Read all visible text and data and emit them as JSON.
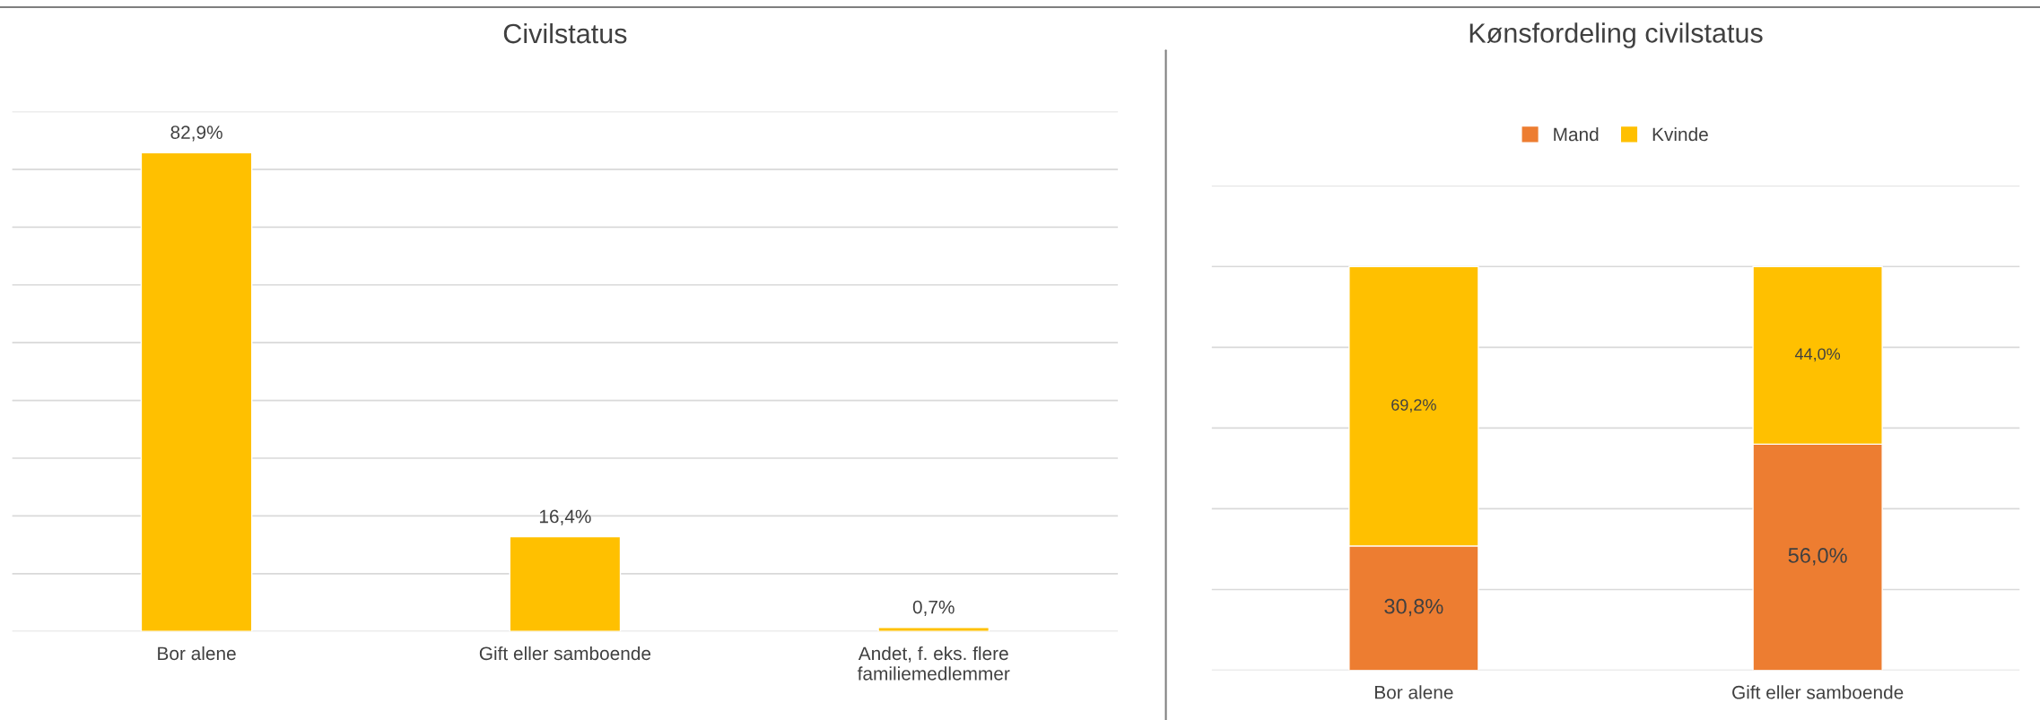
{
  "chart_data": [
    {
      "type": "bar",
      "title": "Civilstatus",
      "categories": [
        "Bor alene",
        "Gift eller samboende",
        "Andet, f. eks. flere\nfamiliemedlemmer"
      ],
      "series": [
        {
          "color": "#ffc000",
          "values": [
            82.9,
            16.4,
            0.7
          ],
          "value_labels": [
            "82,9%",
            "16,4%",
            "0,7%"
          ]
        }
      ],
      "ylim": [
        0,
        90
      ],
      "yticks": [
        {
          "value": 0,
          "label": null
        },
        {
          "value": 10,
          "label": null
        },
        {
          "value": 20,
          "label": null
        },
        {
          "value": 30,
          "label": null
        },
        {
          "value": 40,
          "label": null
        },
        {
          "value": 50,
          "label": null
        },
        {
          "value": 60,
          "label": null
        },
        {
          "value": 70,
          "label": null
        },
        {
          "value": 80,
          "label": null
        },
        {
          "value": 90,
          "label": null
        }
      ],
      "grid": "y",
      "tick_labels": "x",
      "legend": false
    },
    {
      "type": "bar",
      "title": "Kønsfordeling civilstatus",
      "categories": [
        "Bor alene",
        "Gift eller samboende"
      ],
      "stacked": true,
      "series": [
        {
          "name": "Mand",
          "color": "#ed7d31",
          "values": [
            30.8,
            56.0
          ],
          "value_labels": [
            "30,8%",
            "56,0%"
          ]
        },
        {
          "name": "Kvinde",
          "color": "#ffc000",
          "values": [
            69.2,
            44.0
          ],
          "value_labels": [
            "69,2%",
            "44,0%"
          ]
        }
      ],
      "ylim": [
        0,
        120
      ],
      "yticks": [
        {
          "value": 0,
          "label": null
        },
        {
          "value": 20,
          "label": null
        },
        {
          "value": 40,
          "label": null
        },
        {
          "value": 60,
          "label": null
        },
        {
          "value": 80,
          "label": null
        },
        {
          "value": 100,
          "label": null
        },
        {
          "value": 120,
          "label": null
        }
      ],
      "grid": "y",
      "tick_labels": "x",
      "legend": "top"
    }
  ]
}
